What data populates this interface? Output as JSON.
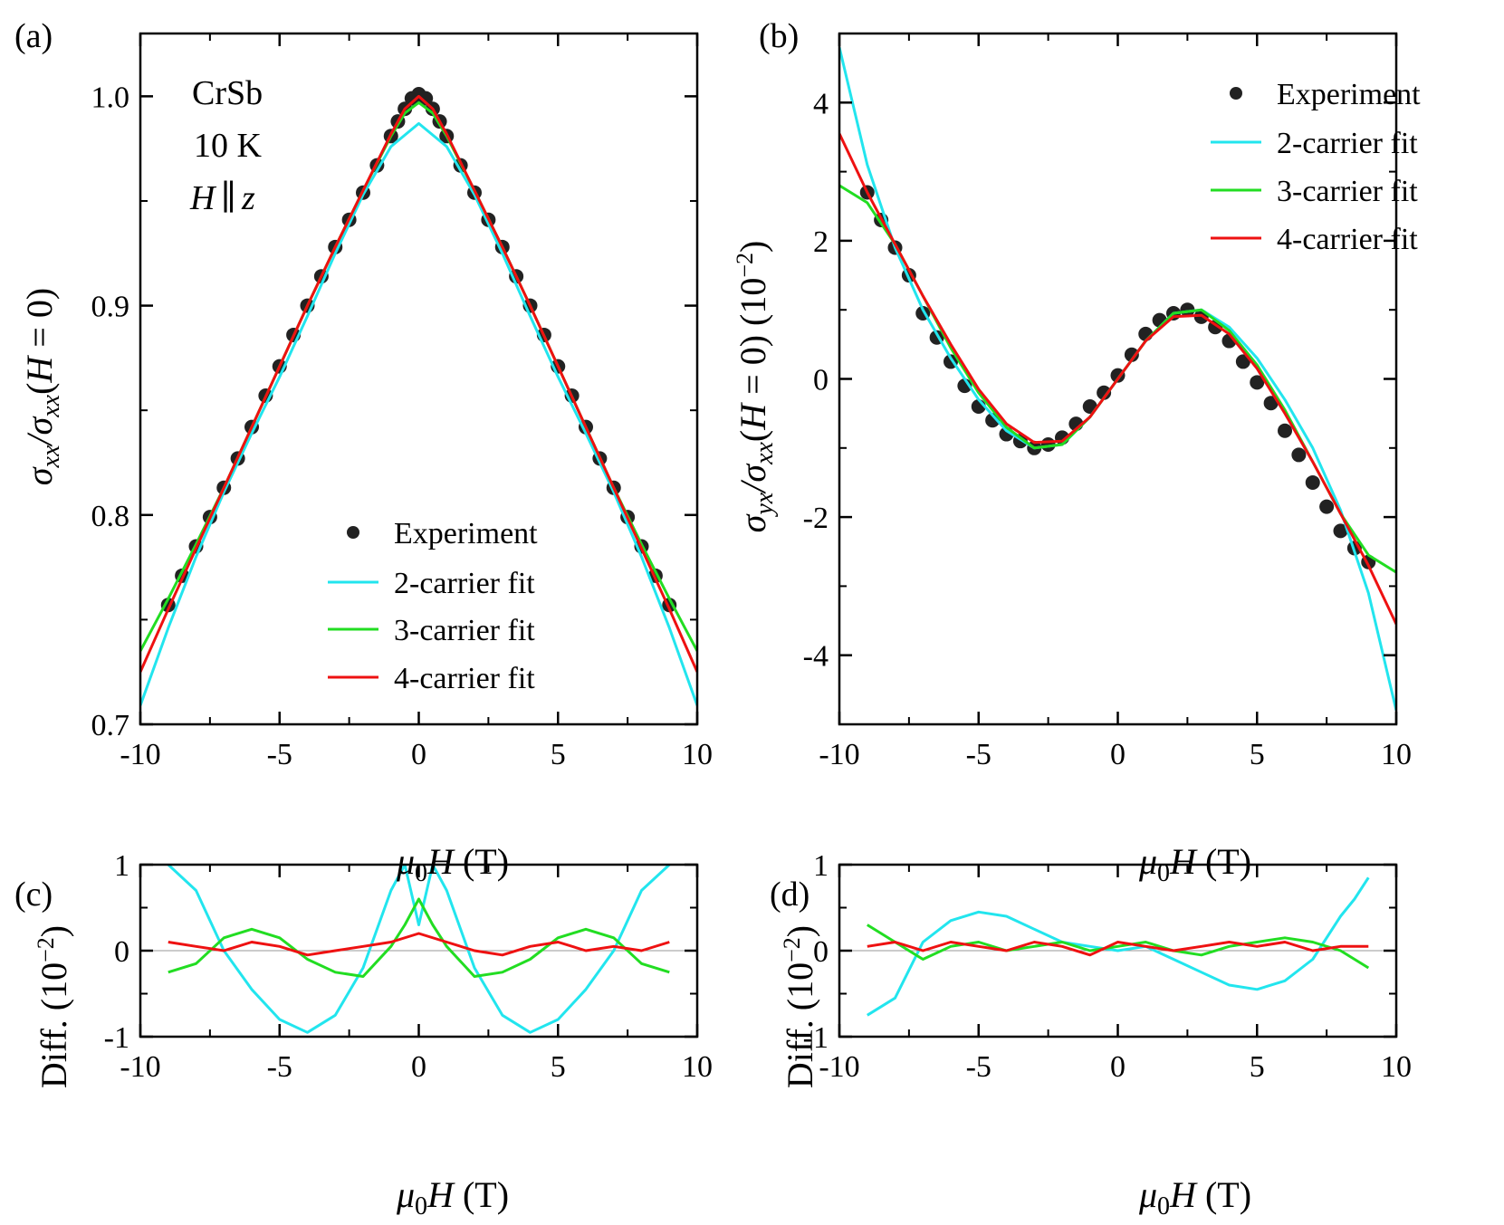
{
  "figure": {
    "panel_labels": [
      "(a)",
      "(b)",
      "(c)",
      "(d)"
    ]
  },
  "legend": {
    "experiment": "Experiment",
    "fit2": "2-carrier fit",
    "fit3": "3-carrier fit",
    "fit4": "4-carrier fit"
  },
  "annotation_a": {
    "material": "CrSb",
    "temperature": "10 K",
    "field_H": "H",
    "field_par": "∥",
    "field_z": "z"
  },
  "axes": {
    "x_mu": "μ",
    "x_sub": "0",
    "x_H": "H",
    "x_unit": " (T)",
    "y_a_sigma": "σ",
    "y_a_sub": "xx",
    "y_a_rest1": "/σ",
    "y_a_sub2": "xx",
    "y_a_rest2": "(",
    "y_a_H": "H",
    "y_a_rest3": " = 0)",
    "y_b_sigma": "σ",
    "y_b_sub": "yx",
    "y_b_rest1": "/σ",
    "y_b_sub2": "xx",
    "y_b_rest2": "(",
    "y_b_H": "H",
    "y_b_rest3": " = 0) (10",
    "y_b_sup": "−2",
    "y_b_rest4": ")",
    "y_diff": "Diff.  (10",
    "y_diff_sup": "−2",
    "y_diff_end": ")"
  },
  "colors": {
    "experiment": "#222222",
    "fit2": "#22e5ee",
    "fit3": "#22dd22",
    "fit4": "#ee1111"
  },
  "chart_data": [
    {
      "panel": "(a)",
      "type": "scatter",
      "xlim": [
        -10,
        10
      ],
      "ylim": [
        0.7,
        1.03
      ],
      "xticks": [
        "-10",
        "-5",
        "0",
        "5",
        "10"
      ],
      "yticks": [
        {
          "v": 0.7,
          "t": "0.7"
        },
        {
          "v": 0.8,
          "t": "0.8"
        },
        {
          "v": 0.9,
          "t": "0.9"
        },
        {
          "v": 1.0,
          "t": "1.0"
        }
      ],
      "legend_position": "lower-center",
      "series": [
        {
          "name": "Experiment",
          "kind": "points",
          "x": [
            -9,
            -8.5,
            -8,
            -7.5,
            -7,
            -6.5,
            -6,
            -5.5,
            -5,
            -4.5,
            -4,
            -3.5,
            -3,
            -2.5,
            -2,
            -1.5,
            -1,
            -0.75,
            -0.5,
            -0.25,
            0,
            0.25,
            0.5,
            0.75,
            1,
            1.5,
            2,
            2.5,
            3,
            3.5,
            4,
            4.5,
            5,
            5.5,
            6,
            6.5,
            7,
            7.5,
            8,
            8.5,
            9
          ],
          "y": [
            0.757,
            0.771,
            0.785,
            0.799,
            0.813,
            0.827,
            0.842,
            0.857,
            0.871,
            0.886,
            0.9,
            0.914,
            0.928,
            0.941,
            0.954,
            0.967,
            0.981,
            0.988,
            0.994,
            0.999,
            1.001,
            0.999,
            0.994,
            0.988,
            0.981,
            0.967,
            0.954,
            0.941,
            0.928,
            0.914,
            0.9,
            0.886,
            0.871,
            0.857,
            0.842,
            0.827,
            0.813,
            0.799,
            0.785,
            0.771,
            0.757
          ]
        },
        {
          "name": "2-carrier fit",
          "kind": "line",
          "x": [
            -10,
            -9,
            -8,
            -7,
            -6,
            -5,
            -4,
            -3,
            -2,
            -1,
            0,
            1,
            2,
            3,
            4,
            5,
            6,
            7,
            8,
            9,
            10
          ],
          "y": [
            0.709,
            0.746,
            0.78,
            0.811,
            0.839,
            0.866,
            0.895,
            0.925,
            0.953,
            0.976,
            0.987,
            0.976,
            0.953,
            0.925,
            0.895,
            0.866,
            0.839,
            0.811,
            0.78,
            0.746,
            0.709
          ]
        },
        {
          "name": "3-carrier fit",
          "kind": "line",
          "x": [
            -10,
            -9,
            -8,
            -7,
            -6,
            -5,
            -4,
            -3,
            -2,
            -1,
            -0.5,
            0,
            0.5,
            1,
            2,
            3,
            4,
            5,
            6,
            7,
            8,
            9,
            10
          ],
          "y": [
            0.735,
            0.76,
            0.786,
            0.813,
            0.842,
            0.871,
            0.9,
            0.928,
            0.955,
            0.981,
            0.992,
            0.997,
            0.992,
            0.981,
            0.955,
            0.928,
            0.9,
            0.871,
            0.842,
            0.813,
            0.786,
            0.76,
            0.735
          ]
        },
        {
          "name": "4-carrier fit",
          "kind": "line",
          "x": [
            -10,
            -9,
            -8,
            -7,
            -6,
            -5,
            -4,
            -3,
            -2,
            -1,
            -0.5,
            0,
            0.5,
            1,
            2,
            3,
            4,
            5,
            6,
            7,
            8,
            9,
            10
          ],
          "y": [
            0.725,
            0.755,
            0.784,
            0.813,
            0.842,
            0.871,
            0.9,
            0.928,
            0.955,
            0.982,
            0.994,
            1.0,
            0.994,
            0.982,
            0.955,
            0.928,
            0.9,
            0.871,
            0.842,
            0.813,
            0.784,
            0.755,
            0.725
          ]
        }
      ]
    },
    {
      "panel": "(b)",
      "type": "scatter",
      "xlim": [
        -10,
        10
      ],
      "ylim": [
        -5,
        5
      ],
      "xticks": [
        "-10",
        "-5",
        "0",
        "5",
        "10"
      ],
      "yticks": [
        {
          "v": -4,
          "t": "-4"
        },
        {
          "v": -2,
          "t": "-2"
        },
        {
          "v": 0,
          "t": "0"
        },
        {
          "v": 2,
          "t": "2"
        },
        {
          "v": 4,
          "t": "4"
        }
      ],
      "legend_position": "top-right",
      "series": [
        {
          "name": "Experiment",
          "kind": "points",
          "x": [
            -9,
            -8.5,
            -8,
            -7.5,
            -7,
            -6.5,
            -6,
            -5.5,
            -5,
            -4.5,
            -4,
            -3.5,
            -3,
            -2.5,
            -2,
            -1.5,
            -1,
            -0.5,
            0,
            0.5,
            1,
            1.5,
            2,
            2.5,
            3,
            3.5,
            4,
            4.5,
            5,
            5.5,
            6,
            6.5,
            7,
            7.5,
            8,
            8.5,
            9
          ],
          "y": [
            2.7,
            2.3,
            1.9,
            1.5,
            0.95,
            0.6,
            0.25,
            -0.1,
            -0.4,
            -0.6,
            -0.8,
            -0.9,
            -1.0,
            -0.95,
            -0.85,
            -0.65,
            -0.4,
            -0.2,
            0.05,
            0.35,
            0.65,
            0.85,
            0.95,
            1.0,
            0.9,
            0.75,
            0.55,
            0.25,
            -0.05,
            -0.35,
            -0.75,
            -1.1,
            -1.5,
            -1.85,
            -2.2,
            -2.45,
            -2.65
          ]
        },
        {
          "name": "2-carrier fit",
          "kind": "line",
          "x": [
            -10,
            -9,
            -8,
            -7,
            -6,
            -5,
            -4,
            -3,
            -2,
            -1,
            0,
            1,
            2,
            3,
            4,
            5,
            6,
            7,
            8,
            9,
            10
          ],
          "y": [
            4.8,
            3.1,
            1.9,
            1.0,
            0.3,
            -0.3,
            -0.75,
            -1.0,
            -0.95,
            -0.55,
            0,
            0.55,
            0.95,
            1.0,
            0.75,
            0.3,
            -0.3,
            -1.0,
            -1.9,
            -3.1,
            -4.8
          ]
        },
        {
          "name": "3-carrier fit",
          "kind": "line",
          "x": [
            -10,
            -9,
            -8,
            -7,
            -6,
            -5,
            -4,
            -3,
            -2,
            -1,
            0,
            1,
            2,
            3,
            4,
            5,
            6,
            7,
            8,
            9,
            10
          ],
          "y": [
            2.8,
            2.55,
            1.95,
            1.2,
            0.45,
            -0.2,
            -0.7,
            -1.0,
            -0.95,
            -0.55,
            0,
            0.55,
            0.95,
            1.0,
            0.7,
            0.2,
            -0.45,
            -1.2,
            -1.95,
            -2.55,
            -2.8
          ]
        },
        {
          "name": "4-carrier fit",
          "kind": "line",
          "x": [
            -10,
            -9,
            -8,
            -7,
            -6,
            -5,
            -4,
            -3,
            -2,
            -1,
            0,
            1,
            2,
            3,
            4,
            5,
            6,
            7,
            8,
            9,
            10
          ],
          "y": [
            3.55,
            2.7,
            1.95,
            1.2,
            0.5,
            -0.15,
            -0.65,
            -0.92,
            -0.9,
            -0.55,
            0,
            0.55,
            0.9,
            0.92,
            0.65,
            0.15,
            -0.5,
            -1.2,
            -1.95,
            -2.7,
            -3.55
          ]
        }
      ]
    },
    {
      "panel": "(c)",
      "type": "line",
      "xlim": [
        -10,
        10
      ],
      "ylim": [
        -1,
        1
      ],
      "xticks": [
        "-10",
        "-5",
        "0",
        "5",
        "10"
      ],
      "yticks": [
        {
          "v": -1,
          "t": "-1"
        },
        {
          "v": 0,
          "t": "0"
        },
        {
          "v": 1,
          "t": "1"
        }
      ],
      "series": [
        {
          "name": "2-carrier fit",
          "kind": "line",
          "x": [
            -9,
            -8,
            -7,
            -6,
            -5,
            -4,
            -3,
            -2,
            -1,
            -0.5,
            0,
            0.5,
            1,
            2,
            3,
            4,
            5,
            6,
            7,
            8,
            9
          ],
          "y": [
            1.0,
            0.7,
            0.0,
            -0.45,
            -0.8,
            -0.95,
            -0.75,
            -0.2,
            0.7,
            1.0,
            0.3,
            1.0,
            0.7,
            -0.2,
            -0.75,
            -0.95,
            -0.8,
            -0.45,
            0.0,
            0.7,
            1.0
          ]
        },
        {
          "name": "3-carrier fit",
          "kind": "line",
          "x": [
            -9,
            -8,
            -7,
            -6,
            -5,
            -4,
            -3,
            -2,
            -1,
            -0.5,
            0,
            0.5,
            1,
            2,
            3,
            4,
            5,
            6,
            7,
            8,
            9
          ],
          "y": [
            -0.25,
            -0.15,
            0.15,
            0.25,
            0.15,
            -0.1,
            -0.25,
            -0.3,
            0.05,
            0.3,
            0.6,
            0.3,
            0.05,
            -0.3,
            -0.25,
            -0.1,
            0.15,
            0.25,
            0.15,
            -0.15,
            -0.25
          ]
        },
        {
          "name": "4-carrier fit",
          "kind": "line",
          "x": [
            -9,
            -8,
            -7,
            -6,
            -5,
            -4,
            -3,
            -2,
            -1,
            0,
            1,
            2,
            3,
            4,
            5,
            6,
            7,
            8,
            9
          ],
          "y": [
            0.1,
            0.05,
            0.0,
            0.1,
            0.05,
            -0.05,
            0.0,
            0.05,
            0.1,
            0.2,
            0.1,
            0.0,
            -0.05,
            0.05,
            0.1,
            0.0,
            0.05,
            0.0,
            0.1
          ]
        }
      ]
    },
    {
      "panel": "(d)",
      "type": "line",
      "xlim": [
        -10,
        10
      ],
      "ylim": [
        -1,
        1
      ],
      "xticks": [
        "-10",
        "-5",
        "0",
        "5",
        "10"
      ],
      "yticks": [
        {
          "v": -1,
          "t": "-1"
        },
        {
          "v": 0,
          "t": "0"
        },
        {
          "v": 1,
          "t": "1"
        }
      ],
      "series": [
        {
          "name": "2-carrier fit",
          "kind": "line",
          "x": [
            -9,
            -8,
            -7,
            -6,
            -5,
            -4,
            -3,
            -2,
            -1,
            0,
            1,
            2,
            3,
            4,
            5,
            6,
            7,
            8,
            8.5,
            9
          ],
          "y": [
            -0.75,
            -0.55,
            0.1,
            0.35,
            0.45,
            0.4,
            0.25,
            0.1,
            0.05,
            0.0,
            0.05,
            -0.1,
            -0.25,
            -0.4,
            -0.45,
            -0.35,
            -0.1,
            0.4,
            0.6,
            0.85
          ]
        },
        {
          "name": "3-carrier fit",
          "kind": "line",
          "x": [
            -9,
            -8,
            -7,
            -6,
            -5,
            -4,
            -3,
            -2,
            -1,
            0,
            1,
            2,
            3,
            4,
            5,
            6,
            7,
            8,
            9
          ],
          "y": [
            0.3,
            0.1,
            -0.1,
            0.05,
            0.1,
            0.0,
            0.05,
            0.1,
            0.0,
            0.05,
            0.1,
            0.0,
            -0.05,
            0.05,
            0.1,
            0.15,
            0.1,
            0.0,
            -0.2
          ]
        },
        {
          "name": "4-carrier fit",
          "kind": "line",
          "x": [
            -9,
            -8,
            -7,
            -6,
            -5,
            -4,
            -3,
            -2,
            -1,
            0,
            1,
            2,
            3,
            4,
            5,
            6,
            7,
            8,
            9
          ],
          "y": [
            0.05,
            0.1,
            0.0,
            0.1,
            0.05,
            0.0,
            0.1,
            0.05,
            -0.05,
            0.1,
            0.05,
            0.0,
            0.05,
            0.1,
            0.05,
            0.1,
            0.0,
            0.05,
            0.05
          ]
        }
      ]
    }
  ]
}
